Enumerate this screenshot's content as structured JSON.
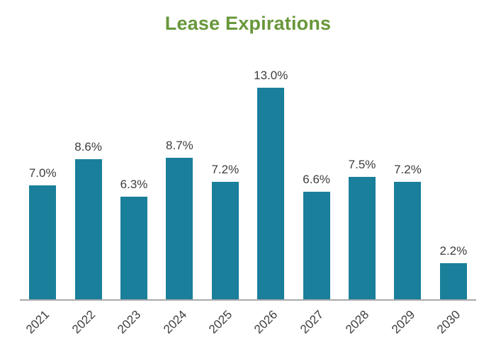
{
  "chart_data": {
    "type": "bar",
    "title": "Lease Expirations",
    "categories": [
      "2021",
      "2022",
      "2023",
      "2024",
      "2025",
      "2026",
      "2027",
      "2028",
      "2029",
      "2030"
    ],
    "values": [
      7.0,
      8.6,
      6.3,
      8.7,
      7.2,
      13.0,
      6.6,
      7.5,
      7.2,
      2.2
    ],
    "value_labels": [
      "7.0%",
      "8.6%",
      "6.3%",
      "8.7%",
      "7.2%",
      "13.0%",
      "6.6%",
      "7.5%",
      "7.2%",
      "2.2%"
    ],
    "xlabel": "",
    "ylabel": "",
    "ylim": [
      0,
      14
    ],
    "grid": false,
    "legend": false,
    "bar_color": "#1a7f9b",
    "title_color": "#68973a",
    "text_color": "#3d3d3d",
    "axis_color": "#a9a9a9"
  }
}
